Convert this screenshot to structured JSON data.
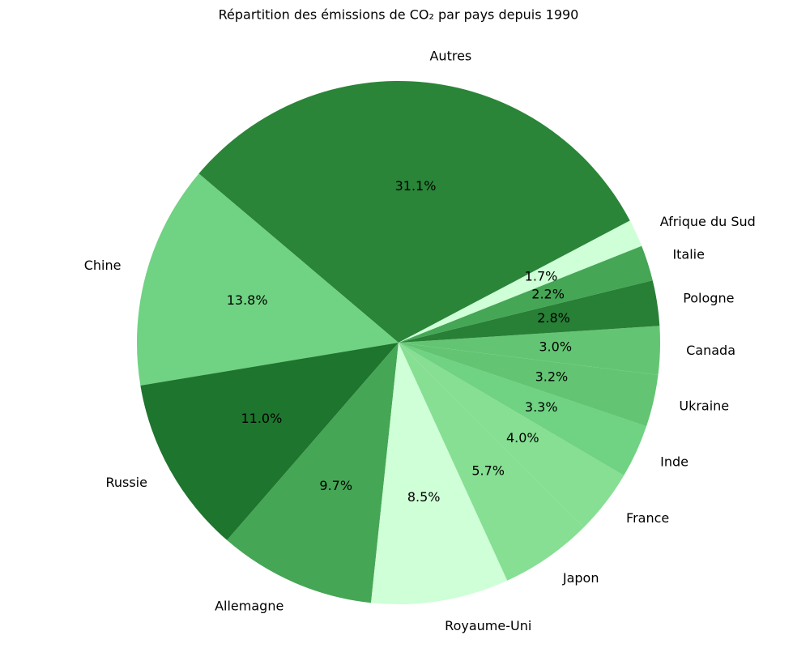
{
  "chart_data": {
    "type": "pie",
    "title": "Répartition des émissions de CO₂ par pays depuis 1990",
    "categories": [
      "Autres",
      "Chine",
      "Russie",
      "Allemagne",
      "Royaume-Uni",
      "Japon",
      "France",
      "Inde",
      "Ukraine",
      "Canada",
      "Pologne",
      "Italie",
      "Afrique du Sud"
    ],
    "values": [
      31.1,
      13.8,
      11.0,
      9.7,
      8.5,
      5.7,
      4.0,
      3.3,
      3.2,
      3.0,
      2.8,
      2.2,
      1.7
    ],
    "value_labels": [
      "31.1%",
      "13.8%",
      "11.0%",
      "9.7%",
      "8.5%",
      "5.7%",
      "4.0%",
      "3.3%",
      "3.2%",
      "3.0%",
      "2.8%",
      "2.2%",
      "1.7%"
    ],
    "colors": [
      "#2a8538",
      "#70d283",
      "#1e752d",
      "#45a655",
      "#ceffd6",
      "#86df93",
      "#86df93",
      "#70d283",
      "#63c573",
      "#63c573",
      "#287f36",
      "#45a655",
      "#ceffd6"
    ]
  }
}
